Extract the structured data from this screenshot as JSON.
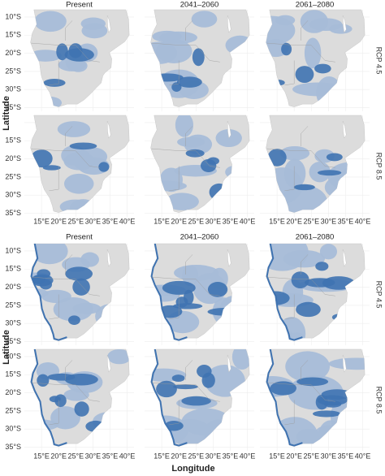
{
  "blocks": [
    {
      "columns": [
        "Present",
        "2041–2060",
        "2061–2080"
      ],
      "rows": [
        {
          "label": "RCP 4.5",
          "latitude_ticks": [
            "10°S",
            "15°S",
            "20°S",
            "25°S",
            "30°S",
            "35°S"
          ]
        },
        {
          "label": "RCP 8.5",
          "latitude_ticks": [
            "15°S",
            "20°S",
            "25°S",
            "30°S",
            "35°S"
          ]
        }
      ],
      "y_axis_label": "Latitude",
      "longitude_ticks": [
        "15°E",
        "20°E",
        "25°E",
        "30°E",
        "35°E",
        "40°E"
      ]
    },
    {
      "columns": [
        "Present",
        "2041–2060",
        "2061–2080"
      ],
      "rows": [
        {
          "label": "RCP 4.5",
          "latitude_ticks": [
            "10°S",
            "15°S",
            "20°S",
            "25°S",
            "30°S",
            "35°S"
          ]
        },
        {
          "label": "RCP 8.5",
          "latitude_ticks": [
            "10°S",
            "15°S",
            "20°S",
            "25°S",
            "30°S",
            "35°S"
          ]
        }
      ],
      "y_axis_label": "Latitude",
      "longitude_ticks": [
        "15°E",
        "20°E",
        "25°E",
        "30°E",
        "35°E",
        "40°E"
      ]
    }
  ],
  "x_axis_label": "Longitude"
}
